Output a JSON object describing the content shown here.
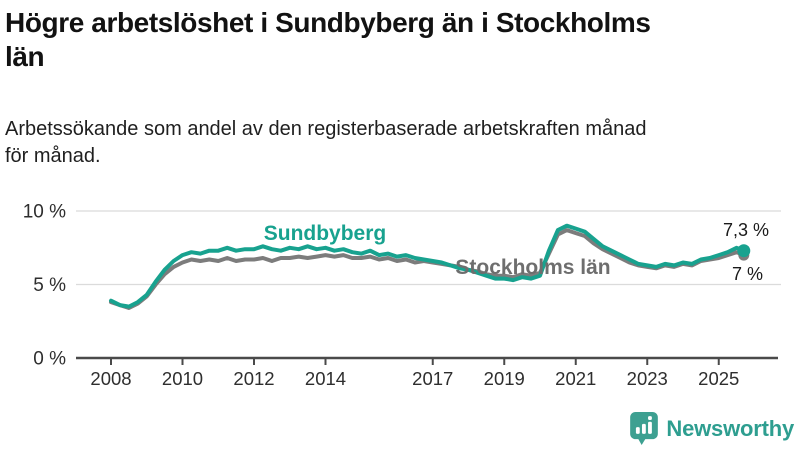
{
  "header": {
    "title_lines": [
      "Högre arbetslöshet i Sundbyberg än i Stockholms",
      "län"
    ],
    "subtitle_lines": [
      "Arbetssökande som andel av den registerbaserade arbetskraften månad",
      "för månad."
    ]
  },
  "colors": {
    "accent_teal": "#18A28F",
    "series_gray": "#7C7C7C",
    "series_label_gray": "#6E6E6E",
    "value_label_dark": "#1A1A1A",
    "axis_text": "#2E2E2E",
    "grid": "#DBDBDB",
    "axis_line": "#4A4A4A",
    "brand_teal": "#2E9E90"
  },
  "chart_data": {
    "type": "line",
    "title": "Högre arbetslöshet i Sundbyberg än i Stockholms län",
    "subtitle": "Arbetssökande som andel av den registerbaserade arbetskraften månad för månad.",
    "xlabel": "",
    "ylabel": "",
    "ylim": [
      0,
      10.5
    ],
    "xlim": [
      2007.2,
      2026.2
    ],
    "grid": "horizontal-only",
    "legend_position": "inline-labels",
    "y_ticks": [
      {
        "value": 0,
        "label": "0 %"
      },
      {
        "value": 5,
        "label": "5 %"
      },
      {
        "value": 10,
        "label": "10 %"
      }
    ],
    "x_ticks": [
      {
        "value": 2008,
        "label": "2008"
      },
      {
        "value": 2010,
        "label": "2010"
      },
      {
        "value": 2012,
        "label": "2012"
      },
      {
        "value": 2014,
        "label": "2014"
      },
      {
        "value": 2017,
        "label": "2017"
      },
      {
        "value": 2019,
        "label": "2019"
      },
      {
        "value": 2021,
        "label": "2021"
      },
      {
        "value": 2023,
        "label": "2023"
      },
      {
        "value": 2025,
        "label": "2025"
      }
    ],
    "x": [
      2008,
      2008.25,
      2008.5,
      2008.75,
      2009,
      2009.25,
      2009.5,
      2009.75,
      2010,
      2010.25,
      2010.5,
      2010.75,
      2011,
      2011.25,
      2011.5,
      2011.75,
      2012,
      2012.25,
      2012.5,
      2012.75,
      2013,
      2013.25,
      2013.5,
      2013.75,
      2014,
      2014.25,
      2014.5,
      2014.75,
      2015,
      2015.25,
      2015.5,
      2015.75,
      2016,
      2016.25,
      2016.5,
      2016.75,
      2017,
      2017.25,
      2017.5,
      2017.75,
      2018,
      2018.25,
      2018.5,
      2018.75,
      2019,
      2019.25,
      2019.5,
      2019.75,
      2020,
      2020.25,
      2020.5,
      2020.75,
      2021,
      2021.25,
      2021.5,
      2021.75,
      2022,
      2022.25,
      2022.5,
      2022.75,
      2023,
      2023.25,
      2023.5,
      2023.75,
      2024,
      2024.25,
      2024.5,
      2024.75,
      2025,
      2025.25,
      2025.5,
      2025.7
    ],
    "series": [
      {
        "name": "Sundbyberg",
        "color": "#18A28F",
        "end_label": "7,3 %",
        "end_value": 7.3,
        "values": [
          3.9,
          3.6,
          3.5,
          3.8,
          4.3,
          5.2,
          6.0,
          6.6,
          7.0,
          7.2,
          7.1,
          7.3,
          7.3,
          7.5,
          7.3,
          7.4,
          7.4,
          7.6,
          7.4,
          7.3,
          7.5,
          7.4,
          7.6,
          7.4,
          7.5,
          7.3,
          7.4,
          7.2,
          7.1,
          7.3,
          7.0,
          7.1,
          6.9,
          7.0,
          6.8,
          6.7,
          6.6,
          6.5,
          6.3,
          6.1,
          6.0,
          5.8,
          5.6,
          5.4,
          5.4,
          5.3,
          5.5,
          5.4,
          5.6,
          7.3,
          8.7,
          9.0,
          8.8,
          8.6,
          8.1,
          7.6,
          7.3,
          7.0,
          6.7,
          6.4,
          6.3,
          6.2,
          6.4,
          6.3,
          6.5,
          6.4,
          6.7,
          6.8,
          7.0,
          7.2,
          7.5,
          7.3
        ]
      },
      {
        "name": "Stockholms län",
        "color": "#7C7C7C",
        "end_label": "7 %",
        "end_value": 7.0,
        "values": [
          3.8,
          3.6,
          3.4,
          3.7,
          4.2,
          5.0,
          5.7,
          6.2,
          6.5,
          6.7,
          6.6,
          6.7,
          6.6,
          6.8,
          6.6,
          6.7,
          6.7,
          6.8,
          6.6,
          6.8,
          6.8,
          6.9,
          6.8,
          6.9,
          7.0,
          6.9,
          7.0,
          6.8,
          6.8,
          6.9,
          6.7,
          6.8,
          6.6,
          6.7,
          6.5,
          6.6,
          6.5,
          6.4,
          6.3,
          6.2,
          6.0,
          5.9,
          5.7,
          5.6,
          5.6,
          5.5,
          5.7,
          5.6,
          5.8,
          7.1,
          8.4,
          8.7,
          8.5,
          8.3,
          7.8,
          7.4,
          7.1,
          6.8,
          6.5,
          6.3,
          6.2,
          6.1,
          6.3,
          6.2,
          6.4,
          6.3,
          6.6,
          6.7,
          6.8,
          7.0,
          7.2,
          7.0
        ]
      }
    ]
  },
  "footer": {
    "brand": "Newsworthy"
  }
}
